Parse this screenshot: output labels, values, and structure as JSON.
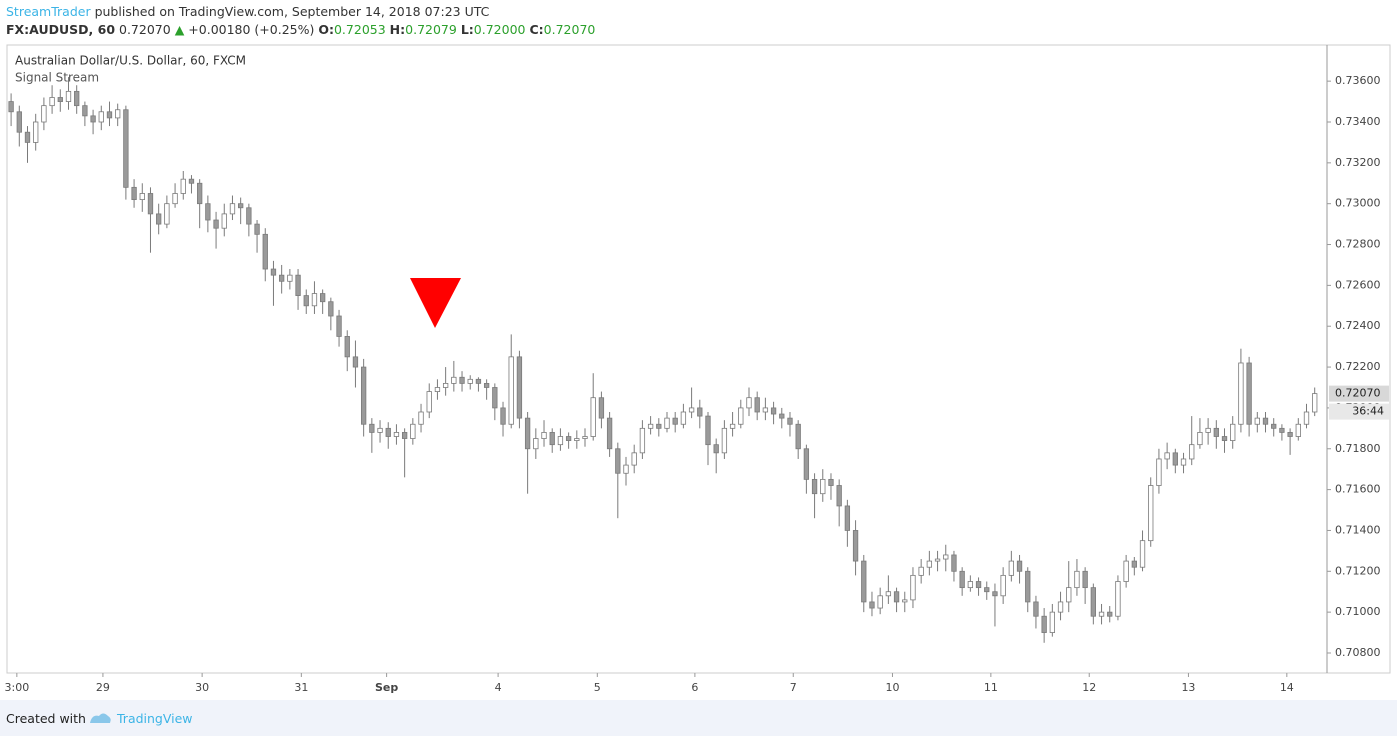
{
  "header": {
    "author": "StreamTrader",
    "published": "published on TradingView.com, September 14, 2018 07:23 UTC",
    "symbol": "FX:AUDUSD, 60",
    "price": "0.72070",
    "arrow": "▲",
    "change": "+0.00180 (+0.25%)",
    "o_label": "O:",
    "o": "0.72053",
    "h_label": "H:",
    "h": "0.72079",
    "l_label": "L:",
    "l": "0.72000",
    "c_label": "C:",
    "c": "0.72070"
  },
  "footer": {
    "created": "Created with",
    "brand": "TradingView"
  },
  "chart_data": {
    "type": "candlestick",
    "title": "Australian Dollar/U.S. Dollar, 60, FXCM",
    "subtitle": "Signal Stream",
    "up_color": "#ffffff",
    "down_color": "#9a9a9a",
    "edge_color": "#7a7a7a",
    "last_price": {
      "value": 0.7207,
      "label": "0.72070"
    },
    "countdown": "36:44",
    "xlim": [
      0,
      161
    ],
    "xticks": [
      {
        "value": 1.2,
        "label": "3:00"
      },
      {
        "value": 11.7,
        "label": "29"
      },
      {
        "value": 23.8,
        "label": "30"
      },
      {
        "value": 35.9,
        "label": "31"
      },
      {
        "value": 46.3,
        "label": "Sep"
      },
      {
        "value": 59.9,
        "label": "4"
      },
      {
        "value": 72,
        "label": "5"
      },
      {
        "value": 83.9,
        "label": "6"
      },
      {
        "value": 95.9,
        "label": "7"
      },
      {
        "value": 108,
        "label": "10"
      },
      {
        "value": 120,
        "label": "11"
      },
      {
        "value": 132,
        "label": "12"
      },
      {
        "value": 144.1,
        "label": "13"
      },
      {
        "value": 156.1,
        "label": "14"
      }
    ],
    "ylim": [
      0.70702,
      0.73777
    ],
    "yticks": [
      {
        "value": 0.708,
        "label": "0.70800"
      },
      {
        "value": 0.71,
        "label": "0.71000"
      },
      {
        "value": 0.712,
        "label": "0.71200"
      },
      {
        "value": 0.714,
        "label": "0.71400"
      },
      {
        "value": 0.716,
        "label": "0.71600"
      },
      {
        "value": 0.718,
        "label": "0.71800"
      },
      {
        "value": 0.72,
        "label": "0.72000"
      },
      {
        "value": 0.722,
        "label": "0.72200"
      },
      {
        "value": 0.724,
        "label": "0.72400"
      },
      {
        "value": 0.726,
        "label": "0.72600"
      },
      {
        "value": 0.728,
        "label": "0.72800"
      },
      {
        "value": 0.73,
        "label": "0.73000"
      },
      {
        "value": 0.732,
        "label": "0.73200"
      },
      {
        "value": 0.734,
        "label": "0.73400"
      },
      {
        "value": 0.736,
        "label": "0.73600"
      }
    ],
    "candles": [
      [
        0.735,
        0.7354,
        0.7338,
        0.7345
      ],
      [
        0.7345,
        0.7348,
        0.7328,
        0.7335
      ],
      [
        0.7335,
        0.7338,
        0.732,
        0.733
      ],
      [
        0.733,
        0.7344,
        0.7326,
        0.734
      ],
      [
        0.734,
        0.7352,
        0.7336,
        0.7348
      ],
      [
        0.7348,
        0.7358,
        0.7344,
        0.7352
      ],
      [
        0.7352,
        0.7356,
        0.7345,
        0.735
      ],
      [
        0.735,
        0.7362,
        0.7346,
        0.7355
      ],
      [
        0.7355,
        0.7358,
        0.7344,
        0.7348
      ],
      [
        0.7348,
        0.735,
        0.7338,
        0.7343
      ],
      [
        0.7343,
        0.7346,
        0.7334,
        0.734
      ],
      [
        0.734,
        0.7348,
        0.7336,
        0.7345
      ],
      [
        0.7345,
        0.735,
        0.7338,
        0.7342
      ],
      [
        0.7342,
        0.7349,
        0.7338,
        0.7346
      ],
      [
        0.7346,
        0.7348,
        0.7302,
        0.7308
      ],
      [
        0.7308,
        0.7312,
        0.7298,
        0.7302
      ],
      [
        0.7302,
        0.731,
        0.7296,
        0.7305
      ],
      [
        0.7305,
        0.7308,
        0.7276,
        0.7295
      ],
      [
        0.7295,
        0.73,
        0.7285,
        0.729
      ],
      [
        0.729,
        0.7304,
        0.7288,
        0.73
      ],
      [
        0.73,
        0.731,
        0.7298,
        0.7305
      ],
      [
        0.7305,
        0.7316,
        0.7302,
        0.7312
      ],
      [
        0.7312,
        0.7314,
        0.7305,
        0.731
      ],
      [
        0.731,
        0.7312,
        0.7288,
        0.73
      ],
      [
        0.73,
        0.7304,
        0.7286,
        0.7292
      ],
      [
        0.7292,
        0.7296,
        0.7278,
        0.7288
      ],
      [
        0.7288,
        0.73,
        0.7284,
        0.7295
      ],
      [
        0.7295,
        0.7304,
        0.7292,
        0.73
      ],
      [
        0.73,
        0.7303,
        0.729,
        0.7298
      ],
      [
        0.7298,
        0.73,
        0.7284,
        0.729
      ],
      [
        0.729,
        0.7292,
        0.7276,
        0.7285
      ],
      [
        0.7285,
        0.7288,
        0.7262,
        0.7268
      ],
      [
        0.7268,
        0.7272,
        0.725,
        0.7265
      ],
      [
        0.7265,
        0.727,
        0.7256,
        0.7262
      ],
      [
        0.7262,
        0.7268,
        0.7258,
        0.7265
      ],
      [
        0.7265,
        0.7268,
        0.7248,
        0.7255
      ],
      [
        0.7255,
        0.7258,
        0.7246,
        0.725
      ],
      [
        0.725,
        0.7262,
        0.7246,
        0.7256
      ],
      [
        0.7256,
        0.7258,
        0.7246,
        0.7252
      ],
      [
        0.7252,
        0.7254,
        0.7238,
        0.7245
      ],
      [
        0.7245,
        0.7248,
        0.723,
        0.7235
      ],
      [
        0.7235,
        0.7238,
        0.7218,
        0.7225
      ],
      [
        0.7225,
        0.7233,
        0.721,
        0.722
      ],
      [
        0.722,
        0.7224,
        0.7186,
        0.7192
      ],
      [
        0.7192,
        0.7195,
        0.7178,
        0.7188
      ],
      [
        0.7188,
        0.7194,
        0.7183,
        0.719
      ],
      [
        0.719,
        0.7193,
        0.718,
        0.7186
      ],
      [
        0.7186,
        0.7192,
        0.7182,
        0.7188
      ],
      [
        0.7188,
        0.719,
        0.7166,
        0.7185
      ],
      [
        0.7185,
        0.7195,
        0.7182,
        0.7192
      ],
      [
        0.7192,
        0.7202,
        0.7188,
        0.7198
      ],
      [
        0.7198,
        0.7212,
        0.7195,
        0.7208
      ],
      [
        0.7208,
        0.7214,
        0.7204,
        0.721
      ],
      [
        0.721,
        0.722,
        0.7206,
        0.7212
      ],
      [
        0.7212,
        0.7223,
        0.7208,
        0.7215
      ],
      [
        0.7215,
        0.7218,
        0.7208,
        0.7212
      ],
      [
        0.7212,
        0.7216,
        0.7209,
        0.7214
      ],
      [
        0.7214,
        0.7215,
        0.7208,
        0.7212
      ],
      [
        0.7212,
        0.7214,
        0.7204,
        0.721
      ],
      [
        0.721,
        0.7212,
        0.7194,
        0.72
      ],
      [
        0.72,
        0.7203,
        0.7186,
        0.7192
      ],
      [
        0.7192,
        0.7236,
        0.719,
        0.7225
      ],
      [
        0.7225,
        0.7228,
        0.719,
        0.7195
      ],
      [
        0.7195,
        0.7198,
        0.7158,
        0.718
      ],
      [
        0.718,
        0.719,
        0.7175,
        0.7185
      ],
      [
        0.7185,
        0.7194,
        0.7181,
        0.7188
      ],
      [
        0.7188,
        0.719,
        0.7178,
        0.7182
      ],
      [
        0.7182,
        0.719,
        0.7179,
        0.7186
      ],
      [
        0.7186,
        0.7188,
        0.718,
        0.7184
      ],
      [
        0.7184,
        0.7189,
        0.718,
        0.7185
      ],
      [
        0.7185,
        0.719,
        0.7181,
        0.7186
      ],
      [
        0.7186,
        0.7217,
        0.7184,
        0.7205
      ],
      [
        0.7205,
        0.7208,
        0.719,
        0.7195
      ],
      [
        0.7195,
        0.7198,
        0.7176,
        0.718
      ],
      [
        0.718,
        0.7183,
        0.7146,
        0.7168
      ],
      [
        0.7168,
        0.7176,
        0.7162,
        0.7172
      ],
      [
        0.7172,
        0.7182,
        0.7168,
        0.7178
      ],
      [
        0.7178,
        0.7194,
        0.7175,
        0.719
      ],
      [
        0.719,
        0.7196,
        0.7187,
        0.7192
      ],
      [
        0.7192,
        0.7195,
        0.7186,
        0.719
      ],
      [
        0.719,
        0.7198,
        0.7188,
        0.7195
      ],
      [
        0.7195,
        0.7198,
        0.7188,
        0.7192
      ],
      [
        0.7192,
        0.7202,
        0.719,
        0.7198
      ],
      [
        0.7198,
        0.721,
        0.7195,
        0.72
      ],
      [
        0.72,
        0.7204,
        0.719,
        0.7196
      ],
      [
        0.7196,
        0.7198,
        0.7172,
        0.7182
      ],
      [
        0.7182,
        0.7185,
        0.7168,
        0.7178
      ],
      [
        0.7178,
        0.7194,
        0.7175,
        0.719
      ],
      [
        0.719,
        0.7198,
        0.7186,
        0.7192
      ],
      [
        0.7192,
        0.7204,
        0.719,
        0.72
      ],
      [
        0.72,
        0.721,
        0.7196,
        0.7205
      ],
      [
        0.7205,
        0.7208,
        0.7194,
        0.7198
      ],
      [
        0.7198,
        0.7205,
        0.7194,
        0.72
      ],
      [
        0.72,
        0.7203,
        0.7192,
        0.7197
      ],
      [
        0.7197,
        0.72,
        0.719,
        0.7195
      ],
      [
        0.7195,
        0.7198,
        0.7186,
        0.7192
      ],
      [
        0.7192,
        0.7194,
        0.7175,
        0.718
      ],
      [
        0.718,
        0.7182,
        0.7158,
        0.7165
      ],
      [
        0.7165,
        0.7168,
        0.7146,
        0.7158
      ],
      [
        0.7158,
        0.717,
        0.7154,
        0.7165
      ],
      [
        0.7165,
        0.7168,
        0.7155,
        0.7162
      ],
      [
        0.7162,
        0.7165,
        0.7142,
        0.7152
      ],
      [
        0.7152,
        0.7155,
        0.7132,
        0.714
      ],
      [
        0.714,
        0.7145,
        0.7118,
        0.7125
      ],
      [
        0.7125,
        0.7128,
        0.71,
        0.7105
      ],
      [
        0.7105,
        0.711,
        0.7098,
        0.7102
      ],
      [
        0.7102,
        0.7112,
        0.7099,
        0.7108
      ],
      [
        0.7108,
        0.7118,
        0.7104,
        0.711
      ],
      [
        0.711,
        0.7112,
        0.71,
        0.7105
      ],
      [
        0.7105,
        0.711,
        0.71,
        0.7106
      ],
      [
        0.7106,
        0.7122,
        0.7102,
        0.7118
      ],
      [
        0.7118,
        0.7126,
        0.7114,
        0.7122
      ],
      [
        0.7122,
        0.713,
        0.7118,
        0.7125
      ],
      [
        0.7125,
        0.713,
        0.712,
        0.7126
      ],
      [
        0.7126,
        0.7133,
        0.712,
        0.7128
      ],
      [
        0.7128,
        0.713,
        0.7115,
        0.712
      ],
      [
        0.712,
        0.7122,
        0.7108,
        0.7112
      ],
      [
        0.7112,
        0.7118,
        0.711,
        0.7115
      ],
      [
        0.7115,
        0.7117,
        0.7108,
        0.7112
      ],
      [
        0.7112,
        0.7115,
        0.7106,
        0.711
      ],
      [
        0.711,
        0.7114,
        0.7093,
        0.7108
      ],
      [
        0.7108,
        0.7122,
        0.7104,
        0.7118
      ],
      [
        0.7118,
        0.713,
        0.7115,
        0.7125
      ],
      [
        0.7125,
        0.7128,
        0.7114,
        0.712
      ],
      [
        0.712,
        0.7122,
        0.71,
        0.7105
      ],
      [
        0.7105,
        0.7108,
        0.7092,
        0.7098
      ],
      [
        0.7098,
        0.7102,
        0.7085,
        0.709
      ],
      [
        0.709,
        0.7104,
        0.7088,
        0.71
      ],
      [
        0.71,
        0.711,
        0.7096,
        0.7105
      ],
      [
        0.7105,
        0.7125,
        0.71,
        0.7112
      ],
      [
        0.7112,
        0.7126,
        0.7108,
        0.712
      ],
      [
        0.712,
        0.7122,
        0.7104,
        0.7112
      ],
      [
        0.7112,
        0.7114,
        0.7094,
        0.7098
      ],
      [
        0.7098,
        0.7104,
        0.7094,
        0.71
      ],
      [
        0.71,
        0.7103,
        0.7095,
        0.7098
      ],
      [
        0.7098,
        0.7118,
        0.7096,
        0.7115
      ],
      [
        0.7115,
        0.7128,
        0.7112,
        0.7125
      ],
      [
        0.7125,
        0.7127,
        0.7118,
        0.7122
      ],
      [
        0.7122,
        0.714,
        0.712,
        0.7135
      ],
      [
        0.7135,
        0.7166,
        0.7132,
        0.7162
      ],
      [
        0.7162,
        0.718,
        0.7158,
        0.7175
      ],
      [
        0.7175,
        0.7183,
        0.717,
        0.7178
      ],
      [
        0.7178,
        0.718,
        0.7168,
        0.7172
      ],
      [
        0.7172,
        0.7178,
        0.7168,
        0.7175
      ],
      [
        0.7175,
        0.7196,
        0.7172,
        0.7182
      ],
      [
        0.7182,
        0.7195,
        0.718,
        0.7188
      ],
      [
        0.7188,
        0.7195,
        0.7182,
        0.719
      ],
      [
        0.719,
        0.7194,
        0.718,
        0.7186
      ],
      [
        0.7186,
        0.719,
        0.7178,
        0.7184
      ],
      [
        0.7184,
        0.7196,
        0.718,
        0.7192
      ],
      [
        0.7192,
        0.7229,
        0.7188,
        0.7222
      ],
      [
        0.7222,
        0.7225,
        0.7186,
        0.7192
      ],
      [
        0.7192,
        0.7198,
        0.7188,
        0.7195
      ],
      [
        0.7195,
        0.7198,
        0.7188,
        0.7192
      ],
      [
        0.7192,
        0.7195,
        0.7186,
        0.719
      ],
      [
        0.719,
        0.7192,
        0.7184,
        0.7188
      ],
      [
        0.7188,
        0.719,
        0.7177,
        0.7186
      ],
      [
        0.7186,
        0.7195,
        0.7184,
        0.7192
      ],
      [
        0.7192,
        0.7202,
        0.719,
        0.7198
      ],
      [
        0.7198,
        0.721,
        0.7196,
        0.7207
      ]
    ]
  }
}
